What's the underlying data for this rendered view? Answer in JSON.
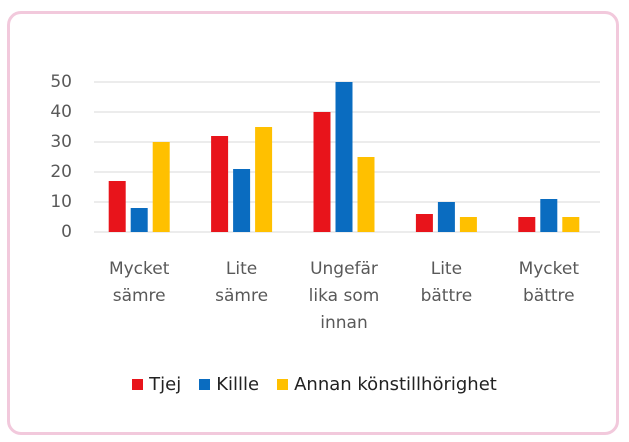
{
  "chart_data": {
    "type": "bar",
    "categories": [
      "Mycket\nsämre",
      "Lite\nsämre",
      "Ungefär\nlika som\ninnan",
      "Lite\nbättre",
      "Mycket\nbättre"
    ],
    "series": [
      {
        "name": "Tjej",
        "color": "#e8141b",
        "values": [
          17,
          32,
          40,
          6,
          5
        ]
      },
      {
        "name": "Killle",
        "color": "#0a6cc0",
        "values": [
          8,
          21,
          50,
          10,
          11
        ]
      },
      {
        "name": "Annan könstillhörighet",
        "color": "#ffc000",
        "values": [
          30,
          35,
          25,
          5,
          5
        ]
      }
    ],
    "ylim": [
      0,
      50
    ],
    "yticks": [
      0,
      10,
      20,
      30,
      40,
      50
    ],
    "grid": true,
    "legend": "bottom"
  }
}
